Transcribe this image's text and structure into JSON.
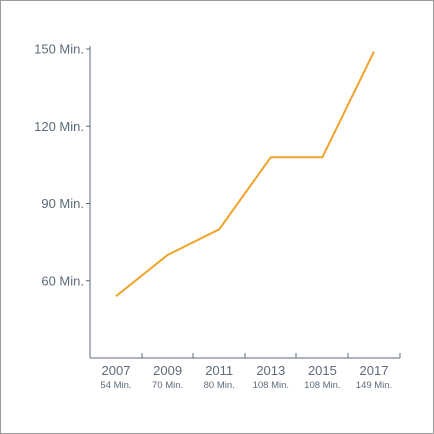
{
  "chart_data": {
    "type": "line",
    "x": [
      "2007",
      "2009",
      "2011",
      "2013",
      "2015",
      "2017"
    ],
    "series": [
      {
        "values": [
          54,
          70,
          80,
          108,
          108,
          149
        ]
      }
    ],
    "data_labels": [
      "54 Min.",
      "70 Min.",
      "80 Min.",
      "108 Min.",
      "108 Min.",
      "149 Min."
    ],
    "y_ticks": [
      {
        "value": 60,
        "label": "60 Min."
      },
      {
        "value": 90,
        "label": "90 Min."
      },
      {
        "value": 120,
        "label": "120 Min."
      },
      {
        "value": 150,
        "label": "150 Min."
      }
    ],
    "ylim": [
      30,
      150
    ],
    "grid": false,
    "line_color": "#f0a32d",
    "axis_color": "#5d6b7a"
  }
}
